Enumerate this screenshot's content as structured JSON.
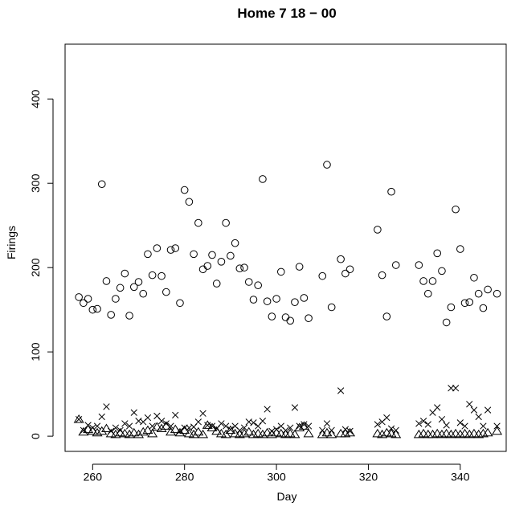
{
  "chart_data": {
    "type": "scatter",
    "title": "Home 7 18 − 00",
    "xlabel": "Day",
    "ylabel": "Firings",
    "xlim": [
      254,
      350
    ],
    "ylim": [
      -18,
      465
    ],
    "xticks": [
      260,
      280,
      300,
      320,
      340
    ],
    "yticks": [
      0,
      100,
      200,
      300,
      400
    ],
    "grid": false,
    "legend": "none",
    "series": [
      {
        "marker": "circle",
        "points": [
          [
            257,
            165
          ],
          [
            258,
            158
          ],
          [
            259,
            163
          ],
          [
            260,
            150
          ],
          [
            261,
            151
          ],
          [
            262,
            299
          ],
          [
            263,
            184
          ],
          [
            264,
            144
          ],
          [
            265,
            163
          ],
          [
            266,
            176
          ],
          [
            267,
            193
          ],
          [
            268,
            143
          ],
          [
            269,
            177
          ],
          [
            270,
            183
          ],
          [
            271,
            169
          ],
          [
            272,
            216
          ],
          [
            273,
            191
          ],
          [
            274,
            223
          ],
          [
            275,
            190
          ],
          [
            276,
            171
          ],
          [
            277,
            221
          ],
          [
            278,
            223
          ],
          [
            279,
            158
          ],
          [
            280,
            292
          ],
          [
            281,
            278
          ],
          [
            282,
            216
          ],
          [
            283,
            253
          ],
          [
            284,
            198
          ],
          [
            285,
            202
          ],
          [
            286,
            215
          ],
          [
            287,
            181
          ],
          [
            288,
            207
          ],
          [
            289,
            253
          ],
          [
            290,
            214
          ],
          [
            291,
            229
          ],
          [
            292,
            199
          ],
          [
            293,
            200
          ],
          [
            294,
            183
          ],
          [
            295,
            162
          ],
          [
            296,
            179
          ],
          [
            297,
            305
          ],
          [
            298,
            160
          ],
          [
            299,
            142
          ],
          [
            300,
            163
          ],
          [
            301,
            195
          ],
          [
            302,
            141
          ],
          [
            303,
            137
          ],
          [
            304,
            159
          ],
          [
            305,
            201
          ],
          [
            306,
            164
          ],
          [
            307,
            140
          ],
          [
            310,
            190
          ],
          [
            311,
            322
          ],
          [
            312,
            153
          ],
          [
            314,
            210
          ],
          [
            315,
            193
          ],
          [
            316,
            198
          ],
          [
            322,
            245
          ],
          [
            323,
            191
          ],
          [
            324,
            142
          ],
          [
            325,
            290
          ],
          [
            326,
            203
          ],
          [
            331,
            203
          ],
          [
            332,
            184
          ],
          [
            333,
            169
          ],
          [
            334,
            184
          ],
          [
            335,
            217
          ],
          [
            336,
            196
          ],
          [
            337,
            135
          ],
          [
            338,
            153
          ],
          [
            339,
            269
          ],
          [
            340,
            222
          ],
          [
            341,
            158
          ],
          [
            342,
            159
          ],
          [
            343,
            188
          ],
          [
            344,
            169
          ],
          [
            345,
            152
          ],
          [
            346,
            174
          ],
          [
            348,
            169
          ]
        ]
      },
      {
        "marker": "cross",
        "points": [
          [
            257,
            20
          ],
          [
            258,
            7
          ],
          [
            259,
            13
          ],
          [
            260,
            10
          ],
          [
            261,
            12
          ],
          [
            262,
            23
          ],
          [
            263,
            35
          ],
          [
            264,
            6
          ],
          [
            265,
            10
          ],
          [
            266,
            7
          ],
          [
            267,
            15
          ],
          [
            268,
            12
          ],
          [
            269,
            28
          ],
          [
            270,
            18
          ],
          [
            271,
            17
          ],
          [
            272,
            22
          ],
          [
            273,
            12
          ],
          [
            274,
            24
          ],
          [
            275,
            18
          ],
          [
            276,
            15
          ],
          [
            277,
            12
          ],
          [
            278,
            25
          ],
          [
            279,
            6
          ],
          [
            280,
            10
          ],
          [
            281,
            10
          ],
          [
            282,
            11
          ],
          [
            283,
            17
          ],
          [
            284,
            27
          ],
          [
            285,
            13
          ],
          [
            286,
            12
          ],
          [
            287,
            9
          ],
          [
            288,
            15
          ],
          [
            289,
            12
          ],
          [
            290,
            8
          ],
          [
            291,
            12
          ],
          [
            292,
            7
          ],
          [
            293,
            10
          ],
          [
            294,
            17
          ],
          [
            295,
            16
          ],
          [
            296,
            12
          ],
          [
            297,
            18
          ],
          [
            298,
            32
          ],
          [
            299,
            6
          ],
          [
            300,
            8
          ],
          [
            301,
            12
          ],
          [
            302,
            7
          ],
          [
            303,
            10
          ],
          [
            304,
            34
          ],
          [
            305,
            12
          ],
          [
            306,
            14
          ],
          [
            307,
            12
          ],
          [
            310,
            7
          ],
          [
            311,
            15
          ],
          [
            312,
            7
          ],
          [
            314,
            54
          ],
          [
            315,
            8
          ],
          [
            316,
            6
          ],
          [
            322,
            14
          ],
          [
            323,
            17
          ],
          [
            324,
            22
          ],
          [
            325,
            9
          ],
          [
            326,
            7
          ],
          [
            331,
            15
          ],
          [
            332,
            18
          ],
          [
            333,
            14
          ],
          [
            334,
            28
          ],
          [
            335,
            34
          ],
          [
            336,
            20
          ],
          [
            337,
            13
          ],
          [
            338,
            57
          ],
          [
            339,
            57
          ],
          [
            340,
            16
          ],
          [
            341,
            12
          ],
          [
            342,
            38
          ],
          [
            343,
            31
          ],
          [
            344,
            23
          ],
          [
            345,
            12
          ],
          [
            346,
            31
          ],
          [
            348,
            12
          ]
        ]
      },
      {
        "marker": "triangle",
        "points": [
          [
            257,
            20
          ],
          [
            258,
            5
          ],
          [
            259,
            8
          ],
          [
            260,
            6
          ],
          [
            261,
            4
          ],
          [
            262,
            6
          ],
          [
            263,
            9
          ],
          [
            264,
            3
          ],
          [
            265,
            2
          ],
          [
            266,
            4
          ],
          [
            267,
            3
          ],
          [
            268,
            2
          ],
          [
            269,
            4
          ],
          [
            270,
            2
          ],
          [
            271,
            5
          ],
          [
            272,
            7
          ],
          [
            273,
            3
          ],
          [
            274,
            11
          ],
          [
            275,
            9
          ],
          [
            276,
            12
          ],
          [
            277,
            5
          ],
          [
            278,
            8
          ],
          [
            279,
            4
          ],
          [
            280,
            7
          ],
          [
            281,
            3
          ],
          [
            282,
            2
          ],
          [
            283,
            5
          ],
          [
            284,
            2
          ],
          [
            285,
            13
          ],
          [
            286,
            10
          ],
          [
            287,
            6
          ],
          [
            288,
            3
          ],
          [
            289,
            2
          ],
          [
            290,
            7
          ],
          [
            291,
            3
          ],
          [
            292,
            2
          ],
          [
            293,
            3
          ],
          [
            294,
            5
          ],
          [
            295,
            2
          ],
          [
            296,
            3
          ],
          [
            297,
            2
          ],
          [
            298,
            4
          ],
          [
            299,
            2
          ],
          [
            300,
            4
          ],
          [
            301,
            3
          ],
          [
            302,
            2
          ],
          [
            303,
            3
          ],
          [
            304,
            2
          ],
          [
            305,
            10
          ],
          [
            306,
            12
          ],
          [
            307,
            3
          ],
          [
            310,
            2
          ],
          [
            311,
            4
          ],
          [
            312,
            2
          ],
          [
            314,
            3
          ],
          [
            315,
            3
          ],
          [
            316,
            4
          ],
          [
            322,
            3
          ],
          [
            323,
            2
          ],
          [
            324,
            4
          ],
          [
            325,
            3
          ],
          [
            326,
            2
          ],
          [
            331,
            2
          ],
          [
            332,
            3
          ],
          [
            333,
            2
          ],
          [
            334,
            2
          ],
          [
            335,
            3
          ],
          [
            336,
            2
          ],
          [
            337,
            3
          ],
          [
            338,
            2
          ],
          [
            339,
            3
          ],
          [
            340,
            2
          ],
          [
            341,
            3
          ],
          [
            342,
            2
          ],
          [
            343,
            3
          ],
          [
            344,
            2
          ],
          [
            345,
            3
          ],
          [
            346,
            4
          ],
          [
            348,
            6
          ]
        ]
      }
    ]
  }
}
